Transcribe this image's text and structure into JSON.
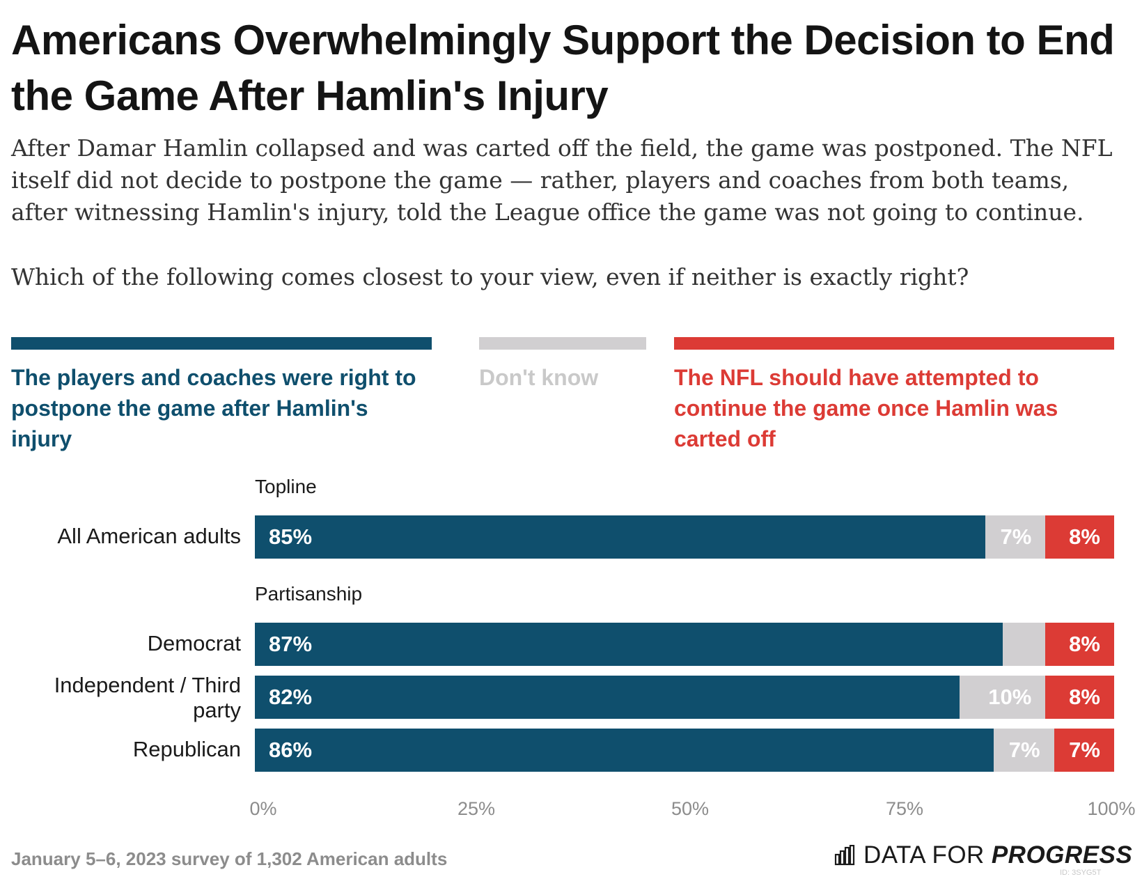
{
  "title": "Americans Overwhelmingly Support the Decision to End the Game After Hamlin's Injury",
  "subtitle": "After Damar Hamlin collapsed and was carted off the field, the game was postponed. The NFL itself did not decide to postpone the game — rather, players and coaches from both teams, after witnessing Hamlin's injury, told the League office the game was not going to continue.",
  "question": "Which of the following comes closest to your view, even if neither is exactly right?",
  "colors": {
    "support": "#0f4f6d",
    "dont_know": "#d1cfd1",
    "oppose": "#dc3b35",
    "dont_know_text": "#c9c9c9"
  },
  "chart_data": {
    "type": "bar",
    "orientation": "horizontal",
    "stacked": true,
    "xlim": [
      0,
      100
    ],
    "x_ticks": [
      "0%",
      "25%",
      "50%",
      "75%",
      "100%"
    ],
    "legend": [
      {
        "key": "support",
        "label": "The players and coaches were right to postpone the game after Hamlin's injury"
      },
      {
        "key": "dont_know",
        "label": "Don't know"
      },
      {
        "key": "oppose",
        "label": "The NFL should have attempted to continue the game once Hamlin was carted off"
      }
    ],
    "groups": [
      {
        "name": "Topline",
        "rows": [
          {
            "label": "All American adults",
            "support": 85,
            "dont_know": 7,
            "oppose": 8,
            "support_label": "85%",
            "dont_know_label": "7%",
            "oppose_label": "8%"
          }
        ]
      },
      {
        "name": "Partisanship",
        "rows": [
          {
            "label": "Democrat",
            "support": 87,
            "dont_know": 5,
            "oppose": 8,
            "support_label": "87%",
            "dont_know_label": "",
            "oppose_label": "8%"
          },
          {
            "label": "Independent / Third party",
            "support": 82,
            "dont_know": 10,
            "oppose": 8,
            "support_label": "82%",
            "dont_know_label": "10%",
            "oppose_label": "8%"
          },
          {
            "label": "Republican",
            "support": 86,
            "dont_know": 7,
            "oppose": 7,
            "support_label": "86%",
            "dont_know_label": "7%",
            "oppose_label": "7%"
          }
        ]
      }
    ]
  },
  "footer": {
    "note": "January 5–6, 2023 survey of 1,302 American adults",
    "logo_a": "DATA FOR",
    "logo_b": "PROGRESS",
    "chart_id": "ID: 3SYG5T"
  }
}
